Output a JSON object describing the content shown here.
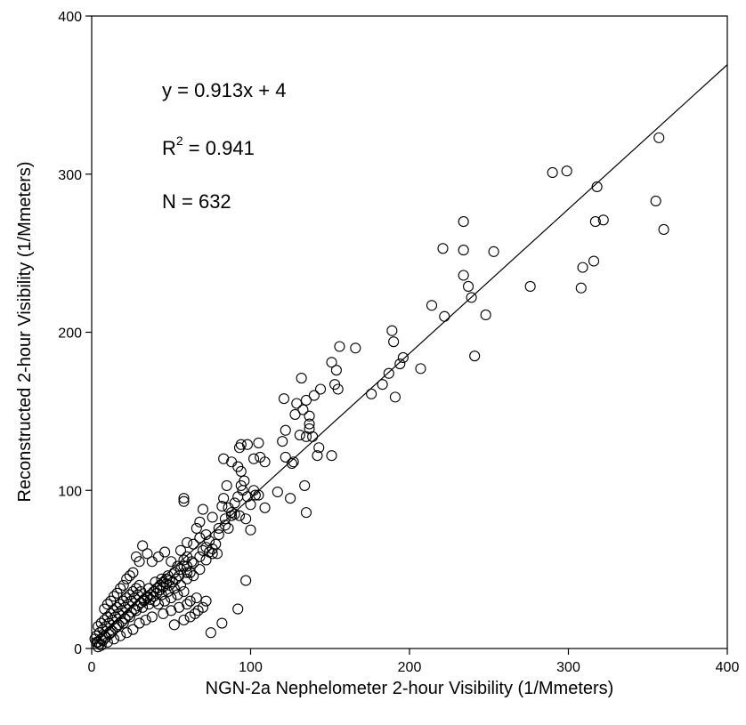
{
  "chart_data": {
    "type": "scatter",
    "xlabel": "NGN-2a Nephelometer 2-hour Visibility (1/Mmeters)",
    "ylabel": "Reconstructed 2-hour Visibility (1/Mmeters)",
    "xlim": [
      0,
      400
    ],
    "ylim": [
      0,
      400
    ],
    "x_ticks": [
      0,
      100,
      200,
      300,
      400
    ],
    "y_ticks": [
      0,
      100,
      200,
      300,
      400
    ],
    "grid": false,
    "annotations": {
      "equation": "y = 0.913x + 4",
      "r2_prefix": "R",
      "r2_sup": "2",
      "r2_value": " = 0.941",
      "n": "N = 632"
    },
    "fit_line": {
      "slope": 0.913,
      "intercept": 4
    },
    "marker": {
      "shape": "open-circle",
      "color": "#000000"
    },
    "series": [
      {
        "points": [
          [
            357,
            323
          ],
          [
            290,
            301
          ],
          [
            299,
            302
          ],
          [
            318,
            292
          ],
          [
            322,
            271
          ],
          [
            355,
            283
          ],
          [
            360,
            265
          ],
          [
            317,
            270
          ],
          [
            316,
            245
          ],
          [
            309,
            241
          ],
          [
            308,
            228
          ],
          [
            276,
            229
          ],
          [
            234,
            270
          ],
          [
            234,
            252
          ],
          [
            221,
            253
          ],
          [
            253,
            251
          ],
          [
            234,
            236
          ],
          [
            237,
            229
          ],
          [
            239,
            222
          ],
          [
            248,
            211
          ],
          [
            222,
            210
          ],
          [
            214,
            217
          ],
          [
            241,
            185
          ],
          [
            189,
            201
          ],
          [
            190,
            194
          ],
          [
            196,
            184
          ],
          [
            194,
            180
          ],
          [
            207,
            177
          ],
          [
            191,
            159
          ],
          [
            176,
            161
          ],
          [
            183,
            167
          ],
          [
            187,
            174
          ],
          [
            156,
            191
          ],
          [
            166,
            190
          ],
          [
            151,
            181
          ],
          [
            154,
            176
          ],
          [
            155,
            164
          ],
          [
            153,
            167
          ],
          [
            144,
            164
          ],
          [
            140,
            160
          ],
          [
            135,
            157
          ],
          [
            133,
            151
          ],
          [
            132,
            171
          ],
          [
            129,
            155
          ],
          [
            128,
            148
          ],
          [
            137,
            147
          ],
          [
            137,
            142
          ],
          [
            137,
            139
          ],
          [
            131,
            135
          ],
          [
            135,
            134
          ],
          [
            139,
            134
          ],
          [
            143,
            127
          ],
          [
            142,
            122
          ],
          [
            151,
            122
          ],
          [
            121,
            158
          ],
          [
            122,
            138
          ],
          [
            120,
            131
          ],
          [
            122,
            121
          ],
          [
            126,
            117
          ],
          [
            127,
            118
          ],
          [
            134,
            103
          ],
          [
            125,
            95
          ],
          [
            135,
            86
          ],
          [
            117,
            99
          ],
          [
            105,
            130
          ],
          [
            105,
            97
          ],
          [
            103,
            97
          ],
          [
            106,
            121
          ],
          [
            102,
            120
          ],
          [
            94,
            129
          ],
          [
            98,
            129
          ],
          [
            93,
            127
          ],
          [
            92,
            115
          ],
          [
            94,
            112
          ],
          [
            88,
            118
          ],
          [
            94,
            103
          ],
          [
            96,
            106
          ],
          [
            109,
            89
          ],
          [
            109,
            118
          ],
          [
            83,
            120
          ],
          [
            85,
            103
          ],
          [
            83,
            95
          ],
          [
            82,
            90
          ],
          [
            86,
            89
          ],
          [
            90,
            85
          ],
          [
            93,
            84
          ],
          [
            97,
            82
          ],
          [
            100,
            75
          ],
          [
            76,
            60
          ],
          [
            79,
            60
          ],
          [
            70,
            88
          ],
          [
            68,
            80
          ],
          [
            72,
            72
          ],
          [
            76,
            83
          ],
          [
            80,
            76
          ],
          [
            84,
            78
          ],
          [
            88,
            84
          ],
          [
            58,
            95
          ],
          [
            58,
            93
          ],
          [
            60,
            67
          ],
          [
            64,
            66
          ],
          [
            66,
            76
          ],
          [
            68,
            70
          ],
          [
            70,
            62
          ],
          [
            72,
            56
          ],
          [
            74,
            61
          ],
          [
            76,
            63
          ],
          [
            63,
            55
          ],
          [
            60,
            52
          ],
          [
            58,
            56
          ],
          [
            54,
            52
          ],
          [
            50,
            55
          ],
          [
            46,
            61
          ],
          [
            42,
            58
          ],
          [
            38,
            55
          ],
          [
            35,
            60
          ],
          [
            32,
            65
          ],
          [
            30,
            55
          ],
          [
            28,
            58
          ],
          [
            26,
            48
          ],
          [
            24,
            46
          ],
          [
            22,
            44
          ],
          [
            20,
            40
          ],
          [
            18,
            38
          ],
          [
            16,
            35
          ],
          [
            14,
            33
          ],
          [
            12,
            30
          ],
          [
            10,
            28
          ],
          [
            8,
            25
          ],
          [
            36,
            38
          ],
          [
            40,
            42
          ],
          [
            44,
            44
          ],
          [
            48,
            46
          ],
          [
            52,
            48
          ],
          [
            56,
            50
          ],
          [
            60,
            48
          ],
          [
            64,
            46
          ],
          [
            68,
            50
          ],
          [
            52,
            38
          ],
          [
            56,
            40
          ],
          [
            60,
            44
          ],
          [
            48,
            36
          ],
          [
            44,
            34
          ],
          [
            40,
            30
          ],
          [
            36,
            28
          ],
          [
            32,
            26
          ],
          [
            28,
            24
          ],
          [
            24,
            20
          ],
          [
            20,
            16
          ],
          [
            16,
            14
          ],
          [
            12,
            10
          ],
          [
            8,
            8
          ],
          [
            6,
            6
          ],
          [
            4,
            4
          ],
          [
            3,
            8
          ],
          [
            5,
            10
          ],
          [
            7,
            12
          ],
          [
            9,
            14
          ],
          [
            11,
            16
          ],
          [
            13,
            18
          ],
          [
            15,
            20
          ],
          [
            17,
            22
          ],
          [
            19,
            24
          ],
          [
            21,
            26
          ],
          [
            23,
            28
          ],
          [
            25,
            30
          ],
          [
            27,
            32
          ],
          [
            29,
            34
          ],
          [
            31,
            36
          ],
          [
            33,
            30
          ],
          [
            35,
            32
          ],
          [
            37,
            34
          ],
          [
            39,
            36
          ],
          [
            41,
            38
          ],
          [
            43,
            40
          ],
          [
            45,
            42
          ],
          [
            47,
            44
          ],
          [
            49,
            40
          ],
          [
            51,
            42
          ],
          [
            53,
            44
          ],
          [
            55,
            46
          ],
          [
            42,
            28
          ],
          [
            46,
            30
          ],
          [
            50,
            32
          ],
          [
            54,
            34
          ],
          [
            58,
            36
          ],
          [
            62,
            30
          ],
          [
            66,
            32
          ],
          [
            45,
            22
          ],
          [
            50,
            24
          ],
          [
            55,
            26
          ],
          [
            60,
            28
          ],
          [
            65,
            22
          ],
          [
            70,
            26
          ],
          [
            52,
            15
          ],
          [
            58,
            18
          ],
          [
            62,
            20
          ],
          [
            67,
            24
          ],
          [
            72,
            30
          ],
          [
            38,
            20
          ],
          [
            34,
            18
          ],
          [
            30,
            16
          ],
          [
            26,
            12
          ],
          [
            22,
            10
          ],
          [
            18,
            8
          ],
          [
            14,
            6
          ],
          [
            10,
            4
          ],
          [
            6,
            2
          ],
          [
            4,
            1
          ],
          [
            2,
            6
          ],
          [
            3,
            4
          ],
          [
            5,
            3
          ],
          [
            7,
            5
          ],
          [
            9,
            7
          ],
          [
            11,
            9
          ],
          [
            13,
            11
          ],
          [
            15,
            13
          ],
          [
            17,
            15
          ],
          [
            19,
            17
          ],
          [
            21,
            19
          ],
          [
            23,
            21
          ],
          [
            25,
            23
          ],
          [
            27,
            25
          ],
          [
            29,
            27
          ],
          [
            31,
            29
          ],
          [
            33,
            31
          ],
          [
            35,
            33
          ],
          [
            37,
            31
          ],
          [
            39,
            33
          ],
          [
            41,
            35
          ],
          [
            43,
            37
          ],
          [
            45,
            39
          ],
          [
            47,
            41
          ],
          [
            49,
            43
          ],
          [
            30,
            40
          ],
          [
            28,
            38
          ],
          [
            26,
            36
          ],
          [
            24,
            34
          ],
          [
            22,
            32
          ],
          [
            20,
            30
          ],
          [
            18,
            28
          ],
          [
            16,
            26
          ],
          [
            14,
            24
          ],
          [
            12,
            22
          ],
          [
            10,
            20
          ],
          [
            8,
            18
          ],
          [
            6,
            16
          ],
          [
            4,
            14
          ],
          [
            82,
            16
          ],
          [
            75,
            10
          ],
          [
            92,
            25
          ],
          [
            97,
            43
          ],
          [
            58,
            52
          ],
          [
            62,
            48
          ],
          [
            56,
            62
          ],
          [
            60,
            58
          ],
          [
            64,
            54
          ],
          [
            68,
            58
          ],
          [
            72,
            64
          ],
          [
            74,
            68
          ],
          [
            78,
            66
          ],
          [
            80,
            72
          ],
          [
            84,
            82
          ],
          [
            86,
            76
          ],
          [
            88,
            86
          ],
          [
            90,
            92
          ],
          [
            92,
            96
          ],
          [
            95,
            100
          ],
          [
            98,
            96
          ],
          [
            102,
            100
          ],
          [
            100,
            91
          ]
        ]
      }
    ]
  }
}
